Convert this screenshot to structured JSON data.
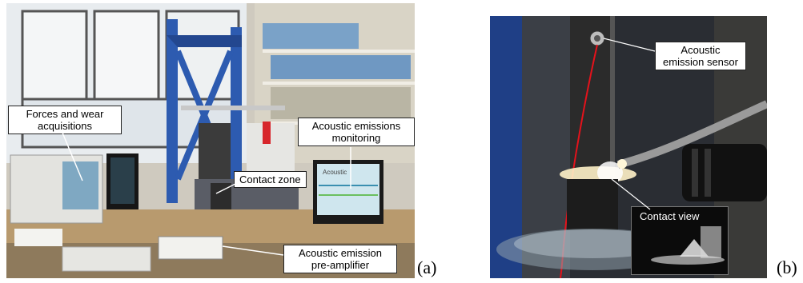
{
  "panel_a": {
    "label": "(a)",
    "callouts": {
      "forces_wear": "Forces and wear acquisitions",
      "ae_monitoring": "Acoustic emissions monitoring",
      "contact_zone": "Contact zone",
      "ae_preamp": "Acoustic emission pre-amplifier"
    },
    "screen_text": "Acoustic"
  },
  "panel_b": {
    "label": "(b)",
    "callouts": {
      "ae_sensor": "Acoustic emission sensor",
      "contact_view": "Contact view"
    }
  },
  "colors": {
    "blue_frame": "#2d5bb0",
    "sensor_wire": "#e5121b",
    "glow": "#fff2c8"
  }
}
